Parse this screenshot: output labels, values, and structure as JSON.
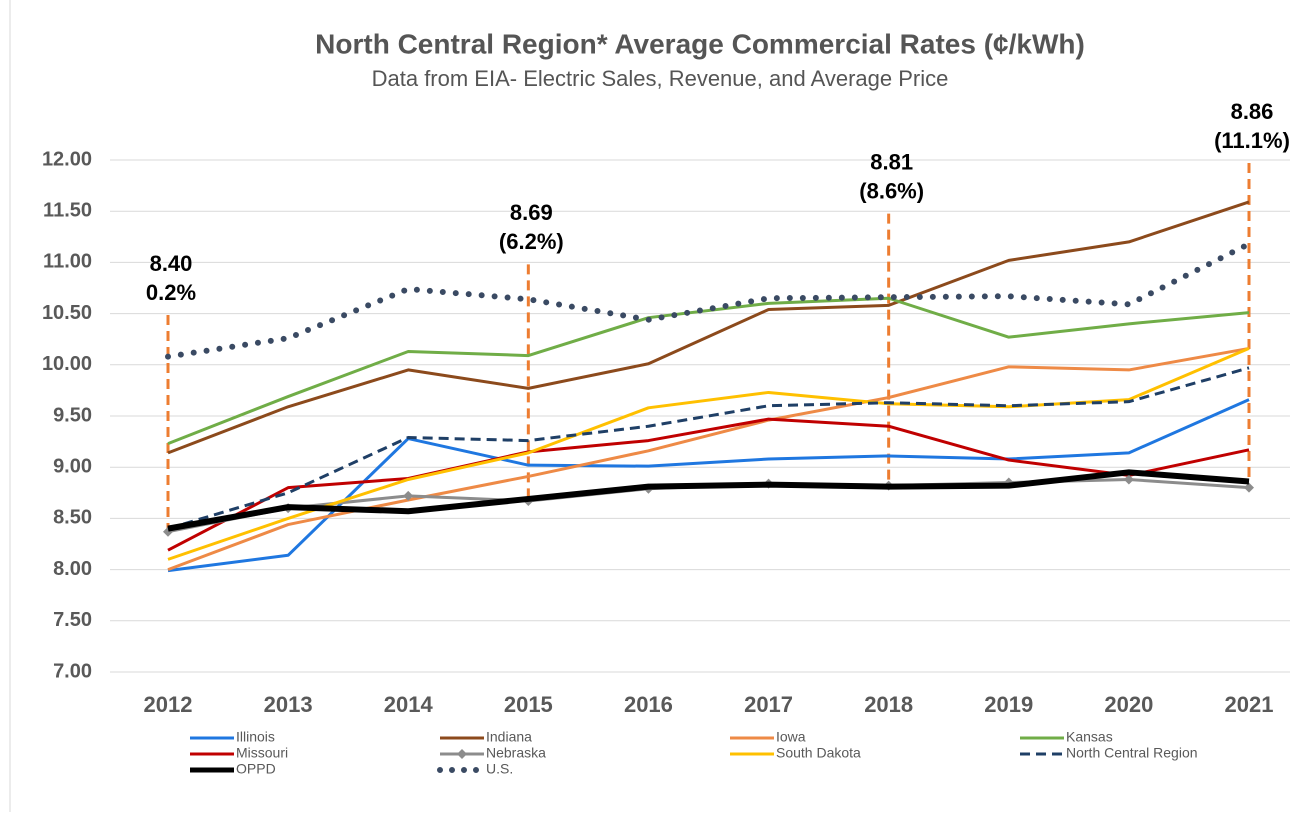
{
  "chart_data": {
    "type": "line",
    "title": "North Central Region* Average Commercial Rates (¢/kWh)",
    "subtitle": "Data from EIA- Electric Sales, Revenue, and Average Price",
    "categories": [
      "2012",
      "2013",
      "2014",
      "2015",
      "2016",
      "2017",
      "2018",
      "2019",
      "2020",
      "2021"
    ],
    "ylim": [
      7,
      12
    ],
    "yticks": [
      {
        "value": 7,
        "label": "7.00"
      },
      {
        "value": 7.5,
        "label": "7.50"
      },
      {
        "value": 8,
        "label": "8.00"
      },
      {
        "value": 8.5,
        "label": "8.50"
      },
      {
        "value": 9,
        "label": "9.00"
      },
      {
        "value": 9.5,
        "label": "9.50"
      },
      {
        "value": 10,
        "label": "10.00"
      },
      {
        "value": 10.5,
        "label": "10.50"
      },
      {
        "value": 11,
        "label": "11.00"
      },
      {
        "value": 11.5,
        "label": "11.50"
      },
      {
        "value": 12,
        "label": "12.00"
      }
    ],
    "grid": true,
    "legend": "bottom",
    "series": [
      {
        "name": "Illinois",
        "color": "#1f77e0",
        "values": [
          7.99,
          8.14,
          9.28,
          9.02,
          9.01,
          9.08,
          9.11,
          9.08,
          9.14,
          9.66
        ]
      },
      {
        "name": "Indiana",
        "color": "#8c4a1c",
        "values": [
          9.14,
          9.59,
          9.95,
          9.77,
          10.01,
          10.54,
          10.58,
          11.02,
          11.2,
          11.59
        ]
      },
      {
        "name": "Iowa",
        "color": "#ee8a46",
        "values": [
          8.0,
          8.44,
          8.68,
          8.91,
          9.16,
          9.46,
          9.68,
          9.98,
          9.95,
          10.16
        ]
      },
      {
        "name": "Kansas",
        "color": "#70ad47",
        "values": [
          9.23,
          9.69,
          10.13,
          10.09,
          10.46,
          10.6,
          10.65,
          10.27,
          10.4,
          10.51
        ]
      },
      {
        "name": "Missouri",
        "color": "#c00000",
        "values": [
          8.19,
          8.8,
          8.89,
          9.15,
          9.26,
          9.47,
          9.4,
          9.07,
          8.92,
          9.17
        ]
      },
      {
        "name": "Nebraska",
        "color": "#8c8c8c",
        "marker": "diamond",
        "values": [
          8.37,
          8.6,
          8.72,
          8.67,
          8.79,
          8.84,
          8.82,
          8.85,
          8.88,
          8.8
        ]
      },
      {
        "name": "South Dakota",
        "color": "#ffc000",
        "values": [
          8.1,
          8.5,
          8.88,
          9.14,
          9.58,
          9.73,
          9.62,
          9.59,
          9.66,
          10.16
        ]
      },
      {
        "name": "North Central Region",
        "color": "#1f3f66",
        "dash": "dashed",
        "values": [
          8.4,
          8.75,
          9.29,
          9.26,
          9.4,
          9.6,
          9.63,
          9.6,
          9.64,
          9.97
        ]
      },
      {
        "name": "OPPD",
        "color": "#000000",
        "width": 6,
        "values": [
          8.4,
          8.61,
          8.57,
          8.69,
          8.81,
          8.83,
          8.81,
          8.82,
          8.95,
          8.86
        ]
      },
      {
        "name": "U.S.",
        "color": "#3a4a63",
        "dash": "dotted",
        "values": [
          10.08,
          10.26,
          10.74,
          10.64,
          10.44,
          10.65,
          10.66,
          10.67,
          10.59,
          11.18
        ]
      }
    ],
    "annotations": [
      {
        "category": "2012",
        "text": [
          "8.40",
          "0.2%"
        ]
      },
      {
        "category": "2015",
        "text": [
          "8.69",
          "(6.2%)"
        ]
      },
      {
        "category": "2018",
        "text": [
          "8.81",
          "(8.6%)"
        ]
      },
      {
        "category": "2021",
        "text": [
          "8.86",
          "(11.1%)"
        ]
      }
    ]
  }
}
